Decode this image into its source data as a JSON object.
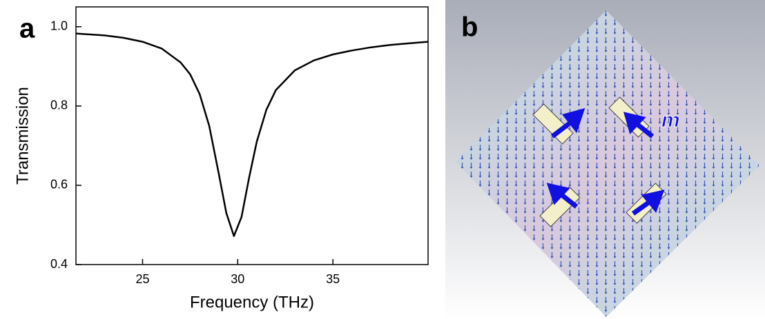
{
  "chart_data": {
    "type": "line",
    "panel_label": "a",
    "xlabel": "Frequency (THz)",
    "ylabel": "Transmission",
    "x": [
      21.5,
      23,
      24,
      25,
      26,
      27,
      27.5,
      28,
      28.5,
      29,
      29.4,
      29.8,
      30.2,
      30.6,
      31,
      31.5,
      32,
      33,
      34,
      35,
      36,
      37,
      38,
      39,
      40
    ],
    "values": [
      0.983,
      0.978,
      0.972,
      0.962,
      0.945,
      0.91,
      0.88,
      0.83,
      0.75,
      0.63,
      0.53,
      0.472,
      0.52,
      0.62,
      0.71,
      0.79,
      0.84,
      0.89,
      0.915,
      0.93,
      0.94,
      0.948,
      0.954,
      0.958,
      0.962
    ],
    "color": "#000000",
    "xlim": [
      21.5,
      40
    ],
    "xticks": [
      25,
      30,
      35
    ],
    "ylim": [
      0.4,
      1.05
    ],
    "yticks": [
      0.4,
      0.6,
      0.8,
      {
        "value": 1,
        "label": "1.0"
      }
    ]
  },
  "image_panel": {
    "panel_label": "b",
    "annotation": "m"
  }
}
